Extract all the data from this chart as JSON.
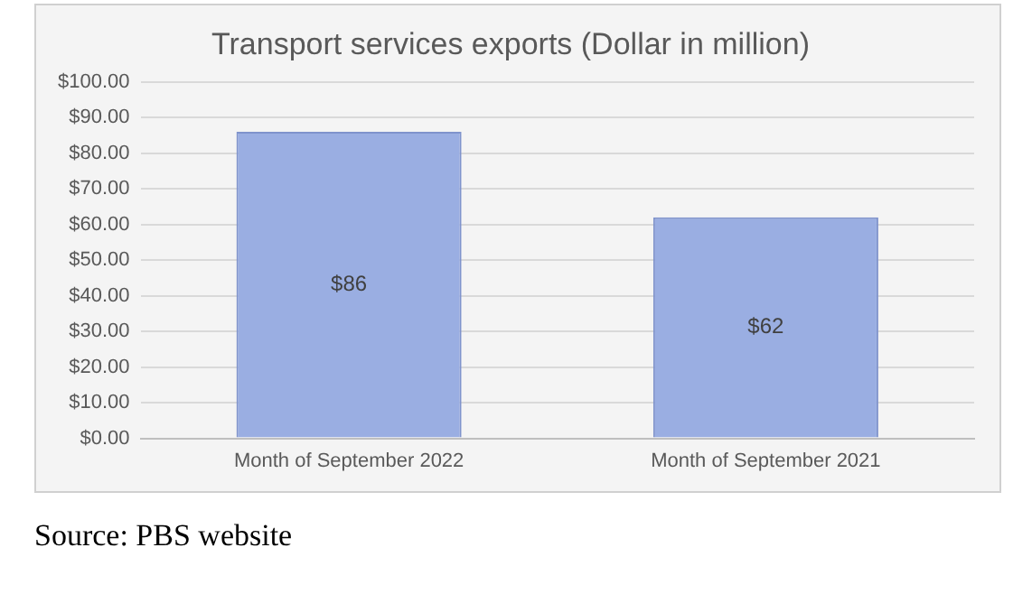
{
  "chart_data": {
    "type": "bar",
    "title": "Transport services exports (Dollar in million)",
    "categories": [
      "Month of September 2022",
      "Month of September 2021"
    ],
    "values": [
      86,
      62
    ],
    "color": "#9aaee2",
    "value_labels": [
      "$86",
      "$62"
    ],
    "ylim": [
      0,
      100
    ],
    "yticks": [
      {
        "value": 0,
        "label": "$0.00"
      },
      {
        "value": 10,
        "label": "$10.00"
      },
      {
        "value": 20,
        "label": "$20.00"
      },
      {
        "value": 30,
        "label": "$30.00"
      },
      {
        "value": 40,
        "label": "$40.00"
      },
      {
        "value": 50,
        "label": "$50.00"
      },
      {
        "value": 60,
        "label": "$60.00"
      },
      {
        "value": 70,
        "label": "$70.00"
      },
      {
        "value": 80,
        "label": "$80.00"
      },
      {
        "value": 90,
        "label": "$90.00"
      },
      {
        "value": 100,
        "label": "$100.00"
      }
    ],
    "grid": "y",
    "annotations": [
      "Source: PBS website"
    ]
  }
}
